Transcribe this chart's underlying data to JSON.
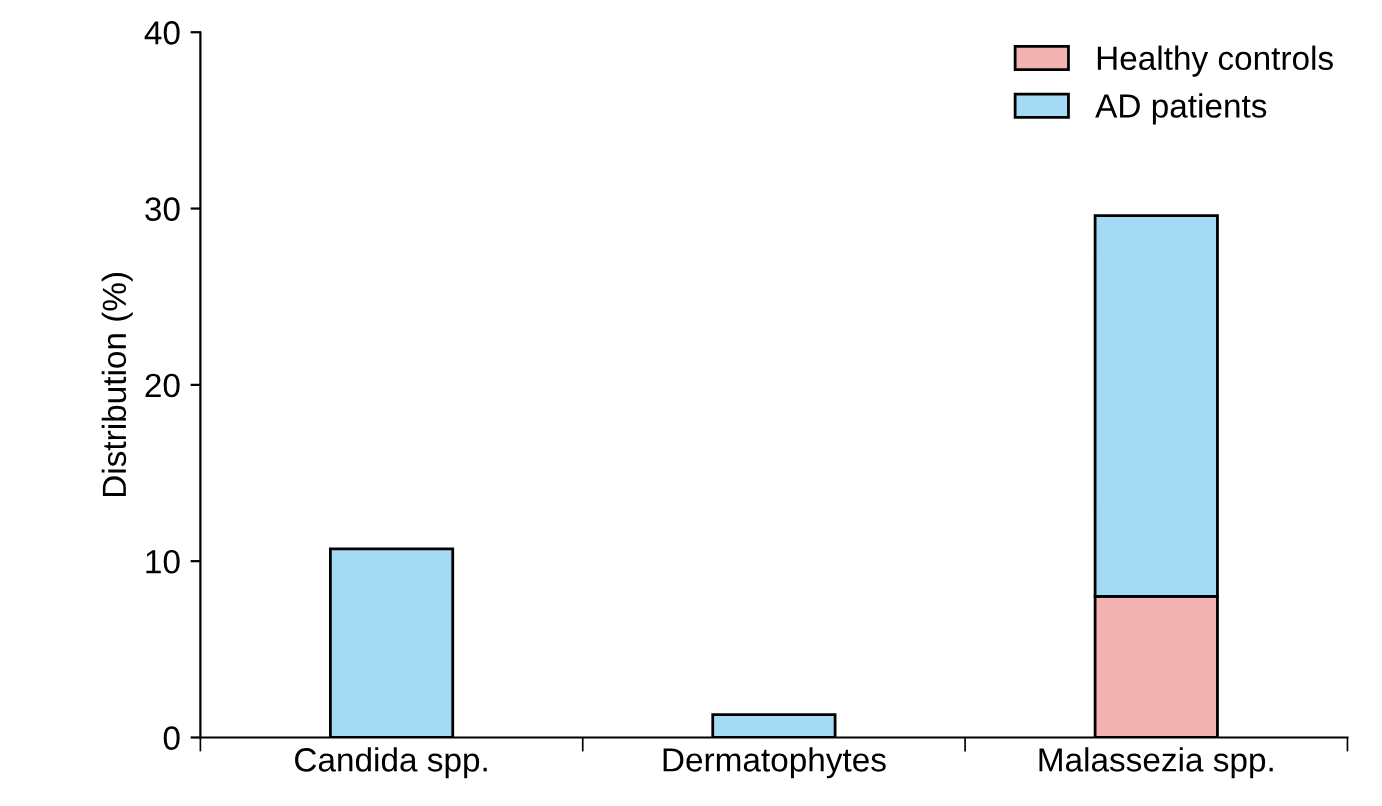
{
  "chart_data": {
    "type": "bar",
    "stacked": true,
    "ylabel": "Distribution (%)",
    "categories": [
      "Candida spp.",
      "Dermatophytes",
      "Malassezia spp."
    ],
    "series": [
      {
        "name": "Healthy controls",
        "color": "#f4b3b3",
        "values": [
          0,
          0,
          8.0
        ]
      },
      {
        "name": "AD patients",
        "color": "#a5daf4",
        "values": [
          10.7,
          1.3,
          21.6
        ]
      }
    ],
    "ylim": [
      0,
      40
    ],
    "yticks": [
      0,
      10,
      20,
      30,
      40
    ],
    "grid": false,
    "legend": "top right"
  }
}
